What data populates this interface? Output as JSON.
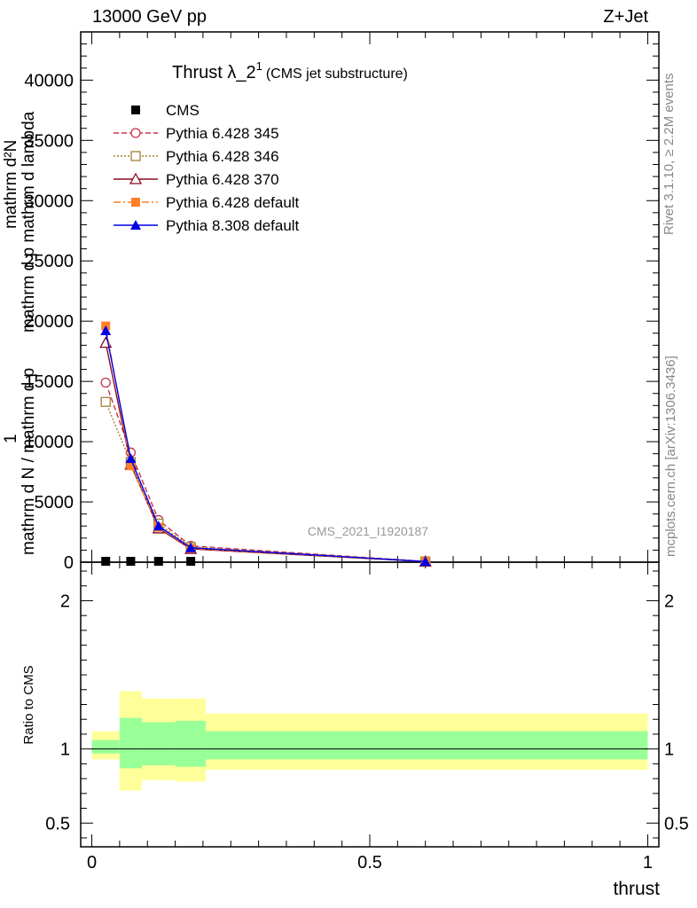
{
  "header": {
    "left": "13000 GeV pp",
    "right": "Z+Jet"
  },
  "side_labels": {
    "rivet": "Rivet 3.1.10, ≥ 2.2M events",
    "mcplots": "mcplots.cern.ch [arXiv:1306.3436]"
  },
  "watermark": "CMS_2021_I1920187",
  "main_ylabel": {
    "numerator_line1": "mathrm d²N",
    "numerator_line2": "mathrm d p mathrm d lambda",
    "one": "1",
    "denominator": "mathrm d N / mathrm d p"
  },
  "chart_data": [
    {
      "type": "line",
      "title": "Thrust λ_2¹ (CMS jet substructure)",
      "title_main": "Thrust λ_2",
      "title_sup": "1",
      "title_sub": "(CMS jet substructure)",
      "xlim": [
        -0.02,
        1.02
      ],
      "ylim": [
        0,
        44000
      ],
      "yticks": [
        0,
        5000,
        10000,
        15000,
        20000,
        25000,
        30000,
        35000,
        40000
      ],
      "ytick_labels": [
        "0",
        "5000",
        "10000",
        "15000",
        "20000",
        "25000",
        "30000",
        "35000",
        "40000"
      ],
      "legend_position": "top-left",
      "series": [
        {
          "name": "CMS",
          "color": "#000000",
          "marker": "square-filled",
          "dash": "none",
          "x": [
            0.025,
            0.07,
            0.12,
            0.178,
            0.6
          ],
          "y": [
            0,
            0,
            0,
            0,
            0
          ]
        },
        {
          "name": "Pythia 6.428 345",
          "color": "#c8324b",
          "marker": "circle-open",
          "dash": "6,3",
          "x": [
            0.025,
            0.07,
            0.12,
            0.178,
            0.6
          ],
          "y": [
            14900,
            9100,
            3500,
            1350,
            60
          ]
        },
        {
          "name": "Pythia 6.428 346",
          "color": "#a08030",
          "marker": "square-open",
          "dash": "2,2",
          "x": [
            0.025,
            0.07,
            0.12,
            0.178,
            0.6
          ],
          "y": [
            13300,
            8300,
            3200,
            1250,
            60
          ]
        },
        {
          "name": "Pythia 6.428 370",
          "color": "#8b0a1e",
          "marker": "triangle-open",
          "dash": "none",
          "x": [
            0.025,
            0.07,
            0.12,
            0.178,
            0.6
          ],
          "y": [
            18200,
            8100,
            2800,
            1100,
            50
          ]
        },
        {
          "name": "Pythia 6.428 default",
          "color": "#ff7f27",
          "marker": "square-filled",
          "dash": "8,3,2,3",
          "x": [
            0.025,
            0.07,
            0.12,
            0.178,
            0.6
          ],
          "y": [
            19600,
            8000,
            2900,
            1150,
            55
          ]
        },
        {
          "name": "Pythia 8.308 default",
          "color": "#0000e6",
          "marker": "triangle-filled",
          "dash": "none",
          "x": [
            0.025,
            0.07,
            0.12,
            0.178,
            0.6
          ],
          "y": [
            19200,
            8600,
            3000,
            1200,
            55
          ]
        }
      ]
    },
    {
      "type": "area",
      "ylabel": "Ratio to CMS",
      "xlabel": "thrust",
      "xlim": [
        -0.02,
        1.02
      ],
      "ylim": [
        0.34,
        2.26
      ],
      "xticks": [
        0,
        0.5,
        1
      ],
      "xtick_labels": [
        "0",
        "0.5",
        "1"
      ],
      "yticks": [
        0.5,
        1,
        2
      ],
      "ytick_labels": [
        "0.5",
        "1",
        "2"
      ],
      "reference_line": 1,
      "bands": [
        {
          "x0": 0.0,
          "x1": 0.05,
          "yellow_lo": 0.93,
          "yellow_hi": 1.12,
          "green_lo": 0.97,
          "green_hi": 1.06
        },
        {
          "x0": 0.05,
          "x1": 0.09,
          "yellow_lo": 0.72,
          "yellow_hi": 1.39,
          "green_lo": 0.87,
          "green_hi": 1.21
        },
        {
          "x0": 0.09,
          "x1": 0.15,
          "yellow_lo": 0.79,
          "yellow_hi": 1.34,
          "green_lo": 0.89,
          "green_hi": 1.18
        },
        {
          "x0": 0.15,
          "x1": 0.205,
          "yellow_lo": 0.78,
          "yellow_hi": 1.34,
          "green_lo": 0.88,
          "green_hi": 1.19
        },
        {
          "x0": 0.205,
          "x1": 1.0,
          "yellow_lo": 0.86,
          "yellow_hi": 1.24,
          "green_lo": 0.93,
          "green_hi": 1.12
        }
      ],
      "colors": {
        "yellow": "#ffff99",
        "green": "#99ff99"
      }
    }
  ]
}
